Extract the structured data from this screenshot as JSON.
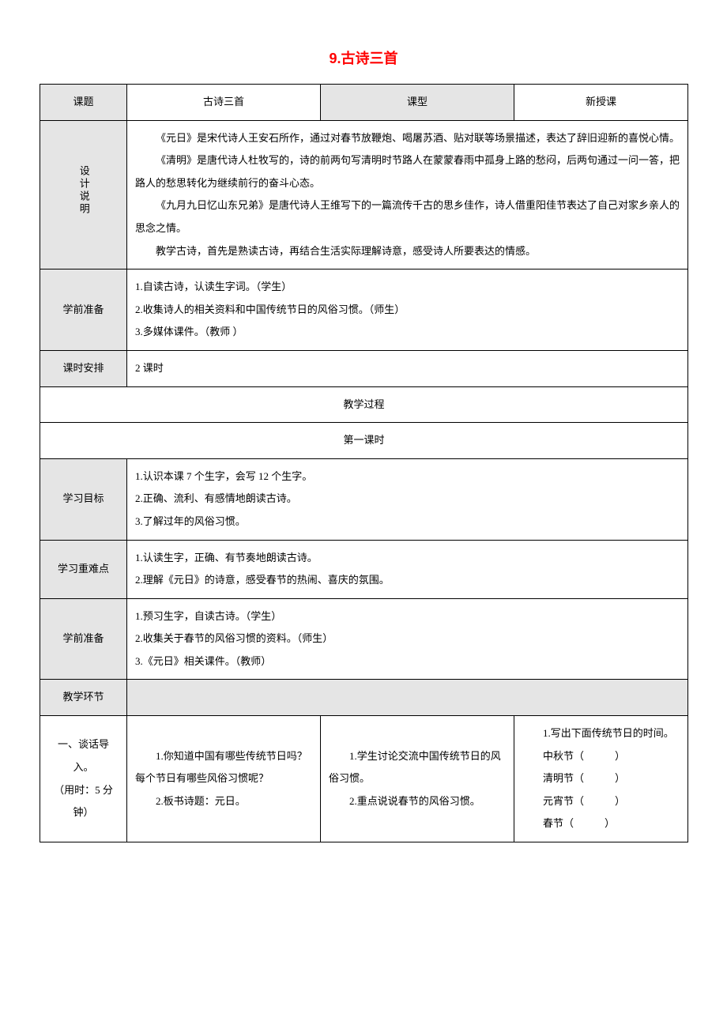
{
  "doc": {
    "title": "9.古诗三首",
    "title_color": "#ff0000",
    "title_fontsize": 18,
    "header_bg": "#e5e5e5",
    "border_color": "#000000",
    "text_color": "#000000",
    "body_fontsize": 13,
    "line_height": 2.2
  },
  "row_topic": {
    "label": "课题",
    "value": "古诗三首",
    "type_label": "课型",
    "type_value": "新授课"
  },
  "design": {
    "label": "设计说明",
    "p1": "《元日》是宋代诗人王安石所作，通过对春节放鞭炮、喝屠苏酒、贴对联等场景描述，表达了辞旧迎新的喜悦心情。",
    "p2": "《清明》是唐代诗人杜牧写的，诗的前两句写清明时节路人在蒙蒙春雨中孤身上路的愁闷，后两句通过一问一答，把路人的愁思转化为继续前行的奋斗心态。",
    "p3": "《九月九日忆山东兄弟》是唐代诗人王维写下的一篇流传千古的思乡佳作，诗人借重阳佳节表达了自己对家乡亲人的思念之情。",
    "p4": "教学古诗，首先是熟读古诗，再结合生活实际理解诗意，感受诗人所要表达的情感。"
  },
  "prep1": {
    "label": "学前准备",
    "l1": "1.自读古诗，认读生字词。（学生）",
    "l2": "2.收集诗人的相关资料和中国传统节日的风俗习惯。（师生）",
    "l3": "3.多媒体课件。（教师 ）"
  },
  "schedule": {
    "label": "课时安排",
    "value": "2 课时"
  },
  "process_label": "教学过程",
  "lesson1_label": "第一课时",
  "goals": {
    "label": "学习目标",
    "l1": "1.认识本课 7 个生字，会写 12 个生字。",
    "l2": "2.正确、流利、有感情地朗读古诗。",
    "l3": "3.了解过年的风俗习惯。"
  },
  "keypoints": {
    "label": "学习重难点",
    "l1": "1.认读生字，正确、有节奏地朗读古诗。",
    "l2": "2.理解《元日》的诗意，感受春节的热闹、喜庆的氛围。"
  },
  "prep2": {
    "label": "学前准备",
    "l1": "1.预习生字，自读古诗。（学生）",
    "l2": "2.收集关于春节的风俗习惯的资料。（师生）",
    "l3": "3.《元日》相关课件。（教师）"
  },
  "segment_label": "教学环节",
  "seg1": {
    "left_title": "一、谈话导入。",
    "left_time": "（用时：5 分钟）",
    "col2_l1": "1.你知道中国有哪些传统节日吗？每个节日有哪些风俗习惯呢？",
    "col2_l2": "2.板书诗题：元日。",
    "col3_l1": "1.学生讨论交流中国传统节日的风俗习惯。",
    "col3_l2": "2.重点说说春节的风俗习惯。",
    "col4_title": "1.写出下面传统节日的时间。",
    "col4_l1": "中秋节（　　　）",
    "col4_l2": "清明节（　　　）",
    "col4_l3": "元宵节（　　　）",
    "col4_l4": "春节（　　　）"
  }
}
